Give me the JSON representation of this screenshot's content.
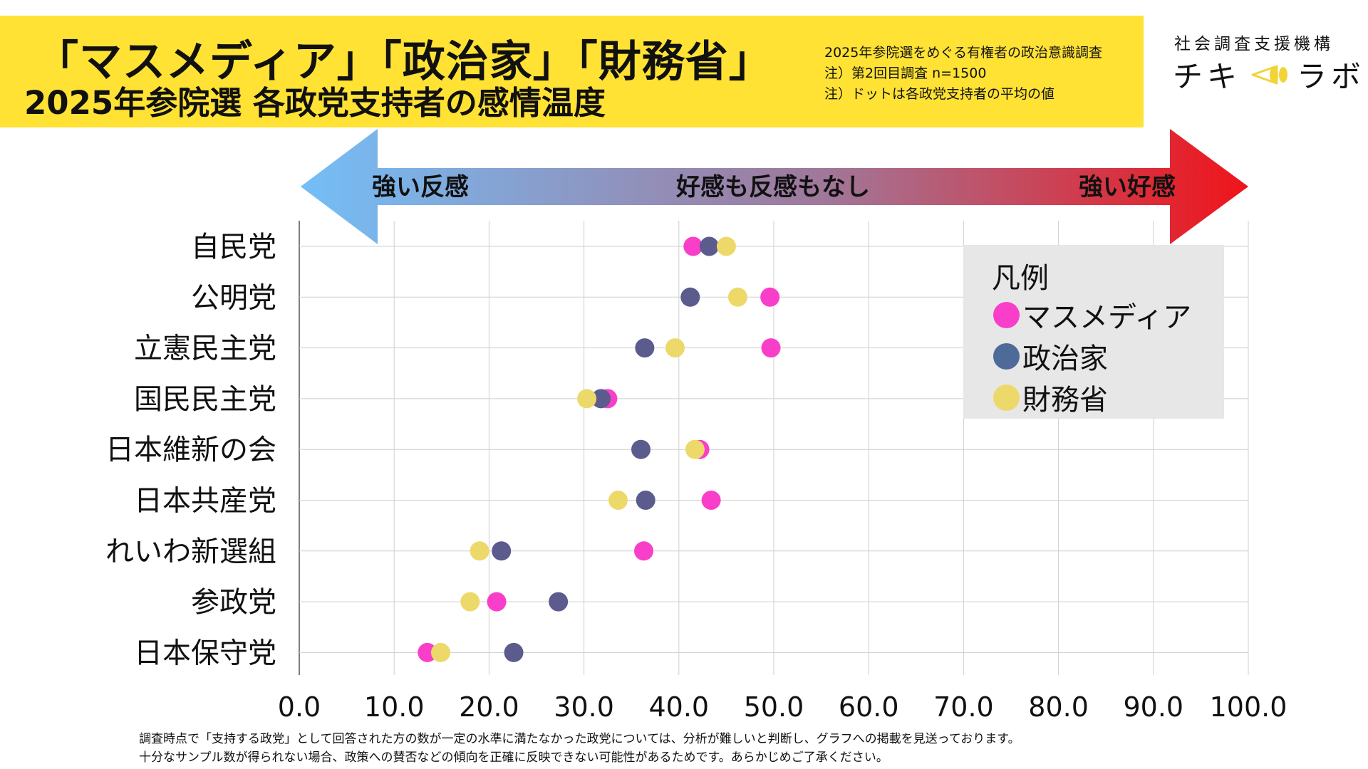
{
  "header": {
    "title_line1": "「マスメディア」「政治家」「財務省」",
    "title_line2": "2025年参院選 各政党支持者の感情温度",
    "notes": [
      "2025年参院選をめぐる有権者の政治意識調査",
      "注）第2回目調査 n=1500",
      "注）ドットは各政党支持者の平均の値"
    ],
    "org_name": "社会調査支援機構",
    "logo_left": "チキ",
    "logo_right": "ラボ",
    "band_color": "#FFE234"
  },
  "footnote": [
    "調査時点で「支持する政党」として回答された方の数が一定の水準に満たなかった政党については、分析が難しいと判断し、グラフへの掲載を見送っております。",
    "十分なサンプル数が得られない場合、政策への賛否などの傾向を正確に反映できない可能性があるためです。あらかじめご了承ください。"
  ],
  "chart_data": {
    "type": "scatter",
    "subtype": "dot-plot",
    "orientation": "horizontal",
    "categories": [
      "自民党",
      "公明党",
      "立憲民主党",
      "国民民主党",
      "日本維新の会",
      "日本共産党",
      "れいわ新選組",
      "参政党",
      "日本保守党"
    ],
    "series": [
      {
        "name": "マスメディア",
        "color": "#F93FC9",
        "values": [
          41.5,
          49.6,
          49.7,
          32.5,
          42.2,
          43.4,
          36.3,
          20.8,
          13.5
        ]
      },
      {
        "name": "政治家",
        "color": "#5B5B8E",
        "values": [
          43.2,
          41.2,
          36.4,
          31.8,
          36.0,
          36.5,
          21.3,
          27.3,
          22.6
        ]
      },
      {
        "name": "財務省",
        "color": "#EDD96A",
        "values": [
          45.0,
          46.2,
          39.6,
          30.3,
          41.7,
          33.6,
          19.0,
          18.0,
          14.9
        ]
      }
    ],
    "xlim": [
      0,
      100
    ],
    "xticks": [
      "0.0",
      "10.0",
      "20.0",
      "30.0",
      "40.0",
      "50.0",
      "60.0",
      "70.0",
      "80.0",
      "90.0",
      "100.0"
    ],
    "grid": true,
    "scale_arrow": {
      "left_label": "強い反感",
      "center_label": "好感も反感もなし",
      "right_label": "強い好感",
      "left_color": "#74BEF7",
      "right_color": "#F0141A"
    },
    "legend": {
      "title": "凡例",
      "position": "top-right"
    }
  }
}
